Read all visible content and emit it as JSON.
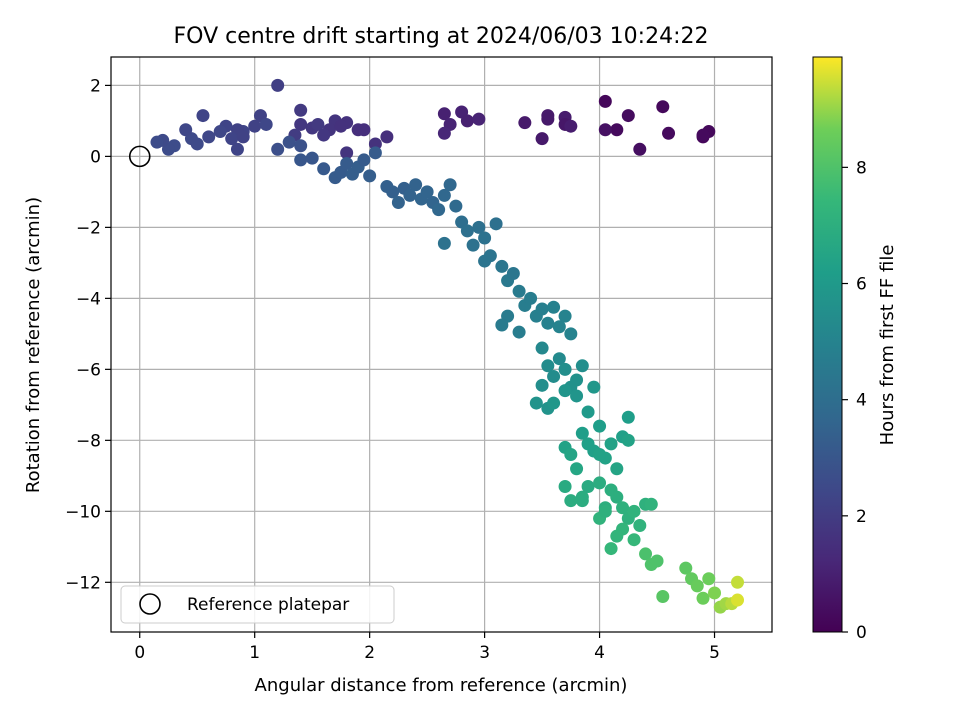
{
  "chart_data": {
    "type": "scatter",
    "title": "FOV centre drift starting at 2024/06/03 10:24:22",
    "xlabel": "Angular distance from reference (arcmin)",
    "ylabel": "Rotation from reference (arcmin)",
    "xlim": [
      -0.25,
      5.5
    ],
    "ylim": [
      -13.4,
      2.8
    ],
    "xticks": [
      0,
      1,
      2,
      3,
      4,
      5
    ],
    "yticks": [
      2,
      0,
      -2,
      -4,
      -6,
      -8,
      -10,
      -12
    ],
    "grid": true,
    "colormap": "viridis",
    "colorbar": {
      "label": "Hours from first FF file",
      "range": [
        0,
        9.9
      ],
      "ticks": [
        0,
        2,
        4,
        6,
        8
      ]
    },
    "legend": {
      "placement": "lower-left",
      "entries": [
        {
          "label": "Reference platepar",
          "marker": "open-circle"
        }
      ]
    },
    "reference_point": {
      "x": 0,
      "y": 0
    },
    "points": [
      [
        4.05,
        1.55,
        0.2
      ],
      [
        4.15,
        0.75,
        0.3
      ],
      [
        4.25,
        1.15,
        0.35
      ],
      [
        4.35,
        0.2,
        0.4
      ],
      [
        4.05,
        0.75,
        0.5
      ],
      [
        4.55,
        1.4,
        0.25
      ],
      [
        4.6,
        0.65,
        0.3
      ],
      [
        4.9,
        0.55,
        0.2
      ],
      [
        4.95,
        0.7,
        0.25
      ],
      [
        4.9,
        0.6,
        0.3
      ],
      [
        3.35,
        0.95,
        0.8
      ],
      [
        3.55,
        1.15,
        0.8
      ],
      [
        3.55,
        1.05,
        0.75
      ],
      [
        3.7,
        1.1,
        0.85
      ],
      [
        3.7,
        0.9,
        0.7
      ],
      [
        3.75,
        0.85,
        0.9
      ],
      [
        3.5,
        0.5,
        0.75
      ],
      [
        2.65,
        1.2,
        1.0
      ],
      [
        2.7,
        0.9,
        1.1
      ],
      [
        2.8,
        1.25,
        1.05
      ],
      [
        2.85,
        1.0,
        1.0
      ],
      [
        2.95,
        1.05,
        1.1
      ],
      [
        2.65,
        0.65,
        1.2
      ],
      [
        2.15,
        0.55,
        1.5
      ],
      [
        2.05,
        0.35,
        1.6
      ],
      [
        1.9,
        0.75,
        1.5
      ],
      [
        1.8,
        0.95,
        1.6
      ],
      [
        1.7,
        1.0,
        1.7
      ],
      [
        1.65,
        0.75,
        1.7
      ],
      [
        1.75,
        0.85,
        1.6
      ],
      [
        1.95,
        0.75,
        1.5
      ],
      [
        1.5,
        0.8,
        1.8
      ],
      [
        1.4,
        1.3,
        1.9
      ],
      [
        1.4,
        0.9,
        1.8
      ],
      [
        1.55,
        0.9,
        1.9
      ],
      [
        1.6,
        0.6,
        1.8
      ],
      [
        1.8,
        0.1,
        1.7
      ],
      [
        1.35,
        0.6,
        2.0
      ],
      [
        1.2,
        2.0,
        2.1
      ],
      [
        1.05,
        1.15,
        2.2
      ],
      [
        1.0,
        0.85,
        2.2
      ],
      [
        0.9,
        0.7,
        2.3
      ],
      [
        0.85,
        0.75,
        2.2
      ],
      [
        0.8,
        0.5,
        2.3
      ],
      [
        0.75,
        0.85,
        2.3
      ],
      [
        0.7,
        0.7,
        2.4
      ],
      [
        0.6,
        0.55,
        2.4
      ],
      [
        0.55,
        1.15,
        2.3
      ],
      [
        0.45,
        0.5,
        2.5
      ],
      [
        0.4,
        0.75,
        2.4
      ],
      [
        0.5,
        0.35,
        2.5
      ],
      [
        0.3,
        0.3,
        2.6
      ],
      [
        0.25,
        0.2,
        2.6
      ],
      [
        0.2,
        0.45,
        2.5
      ],
      [
        0.15,
        0.4,
        2.6
      ],
      [
        0.85,
        0.2,
        2.3
      ],
      [
        0.9,
        0.55,
        2.2
      ],
      [
        1.1,
        0.9,
        2.4
      ],
      [
        1.2,
        0.2,
        2.7
      ],
      [
        1.3,
        0.4,
        2.8
      ],
      [
        1.4,
        0.3,
        2.8
      ],
      [
        1.4,
        -0.1,
        3.0
      ],
      [
        1.5,
        -0.05,
        3.0
      ],
      [
        1.6,
        -0.35,
        3.1
      ],
      [
        1.7,
        -0.6,
        3.2
      ],
      [
        1.75,
        -0.45,
        3.2
      ],
      [
        1.8,
        -0.2,
        3.2
      ],
      [
        1.85,
        -0.5,
        3.3
      ],
      [
        1.9,
        -0.3,
        3.3
      ],
      [
        2.0,
        -0.55,
        3.3
      ],
      [
        2.05,
        0.1,
        3.2
      ],
      [
        1.95,
        -0.1,
        3.2
      ],
      [
        2.15,
        -0.85,
        3.4
      ],
      [
        2.2,
        -1.0,
        3.4
      ],
      [
        2.25,
        -1.3,
        3.5
      ],
      [
        2.3,
        -0.9,
        3.4
      ],
      [
        2.35,
        -1.1,
        3.5
      ],
      [
        2.4,
        -0.8,
        3.5
      ],
      [
        2.45,
        -1.2,
        3.6
      ],
      [
        2.5,
        -1.0,
        3.6
      ],
      [
        2.55,
        -1.3,
        3.6
      ],
      [
        2.6,
        -1.5,
        3.7
      ],
      [
        2.65,
        -1.1,
        3.7
      ],
      [
        2.7,
        -0.8,
        3.7
      ],
      [
        2.75,
        -1.4,
        3.8
      ],
      [
        2.65,
        -2.45,
        4.2
      ],
      [
        2.8,
        -1.85,
        4.0
      ],
      [
        2.85,
        -2.1,
        4.1
      ],
      [
        2.9,
        -2.5,
        4.2
      ],
      [
        2.95,
        -2.0,
        4.1
      ],
      [
        3.0,
        -2.3,
        4.2
      ],
      [
        3.05,
        -2.8,
        4.3
      ],
      [
        3.1,
        -1.9,
        4.1
      ],
      [
        3.0,
        -2.95,
        4.3
      ],
      [
        3.15,
        -3.1,
        4.4
      ],
      [
        3.2,
        -3.5,
        4.5
      ],
      [
        3.25,
        -3.3,
        4.4
      ],
      [
        3.3,
        -3.8,
        4.6
      ],
      [
        3.35,
        -4.2,
        4.7
      ],
      [
        3.4,
        -4.0,
        4.7
      ],
      [
        3.45,
        -4.5,
        4.8
      ],
      [
        3.5,
        -4.3,
        4.8
      ],
      [
        3.55,
        -4.7,
        4.9
      ],
      [
        3.6,
        -4.25,
        4.9
      ],
      [
        3.65,
        -4.8,
        5.0
      ],
      [
        3.7,
        -4.5,
        5.0
      ],
      [
        3.75,
        -5.0,
        5.0
      ],
      [
        3.2,
        -4.5,
        4.6
      ],
      [
        3.15,
        -4.75,
        4.6
      ],
      [
        3.3,
        -4.95,
        4.7
      ],
      [
        3.5,
        -5.4,
        5.2
      ],
      [
        3.55,
        -5.9,
        5.4
      ],
      [
        3.6,
        -6.2,
        5.4
      ],
      [
        3.65,
        -5.7,
        5.3
      ],
      [
        3.7,
        -6.0,
        5.5
      ],
      [
        3.75,
        -6.5,
        5.6
      ],
      [
        3.8,
        -6.3,
        5.6
      ],
      [
        3.5,
        -6.45,
        5.5
      ],
      [
        3.45,
        -6.95,
        5.7
      ],
      [
        3.55,
        -7.1,
        5.7
      ],
      [
        3.7,
        -6.6,
        5.8
      ],
      [
        3.8,
        -6.75,
        5.8
      ],
      [
        3.85,
        -5.9,
        5.5
      ],
      [
        3.95,
        -6.5,
        5.9
      ],
      [
        3.9,
        -7.2,
        6.0
      ],
      [
        3.6,
        -6.95,
        5.9
      ],
      [
        3.85,
        -7.8,
        6.2
      ],
      [
        3.9,
        -8.1,
        6.3
      ],
      [
        3.95,
        -8.3,
        6.3
      ],
      [
        4.0,
        -7.6,
        6.2
      ],
      [
        4.05,
        -8.5,
        6.4
      ],
      [
        4.1,
        -8.1,
        6.4
      ],
      [
        4.15,
        -8.8,
        6.5
      ],
      [
        4.2,
        -7.9,
        6.3
      ],
      [
        4.25,
        -8.0,
        6.4
      ],
      [
        4.25,
        -7.35,
        6.2
      ],
      [
        3.7,
        -8.2,
        6.4
      ],
      [
        3.75,
        -8.4,
        6.5
      ],
      [
        3.8,
        -8.8,
        6.6
      ],
      [
        4.0,
        -8.4,
        6.4
      ],
      [
        3.7,
        -9.3,
        6.8
      ],
      [
        3.75,
        -9.7,
        6.9
      ],
      [
        3.85,
        -9.6,
        6.9
      ],
      [
        3.9,
        -9.3,
        6.8
      ],
      [
        4.0,
        -9.2,
        6.9
      ],
      [
        4.05,
        -9.9,
        7.0
      ],
      [
        4.1,
        -9.4,
        7.0
      ],
      [
        4.15,
        -9.6,
        7.0
      ],
      [
        4.2,
        -9.9,
        7.1
      ],
      [
        4.25,
        -10.2,
        7.1
      ],
      [
        4.3,
        -10.0,
        7.2
      ],
      [
        4.35,
        -10.4,
        7.2
      ],
      [
        4.4,
        -9.8,
        7.1
      ],
      [
        4.45,
        -9.8,
        7.2
      ],
      [
        4.2,
        -10.5,
        7.3
      ],
      [
        4.15,
        -10.7,
        7.3
      ],
      [
        4.1,
        -11.05,
        7.4
      ],
      [
        4.3,
        -10.8,
        7.4
      ],
      [
        4.0,
        -10.2,
        7.2
      ],
      [
        4.05,
        -10.0,
        7.1
      ],
      [
        3.85,
        -9.7,
        6.9
      ],
      [
        4.4,
        -11.2,
        7.9
      ],
      [
        4.45,
        -11.5,
        8.0
      ],
      [
        4.5,
        -11.4,
        8.0
      ],
      [
        4.55,
        -12.4,
        8.2
      ],
      [
        4.75,
        -11.6,
        8.3
      ],
      [
        4.8,
        -11.9,
        8.4
      ],
      [
        4.85,
        -12.1,
        8.5
      ],
      [
        4.9,
        -12.45,
        8.6
      ],
      [
        4.95,
        -11.9,
        8.6
      ],
      [
        5.0,
        -12.3,
        8.8
      ],
      [
        5.05,
        -12.7,
        9.0
      ],
      [
        5.1,
        -12.6,
        9.1
      ],
      [
        5.15,
        -12.6,
        9.3
      ],
      [
        5.2,
        -12.0,
        9.4
      ],
      [
        5.2,
        -12.5,
        9.6
      ]
    ]
  }
}
